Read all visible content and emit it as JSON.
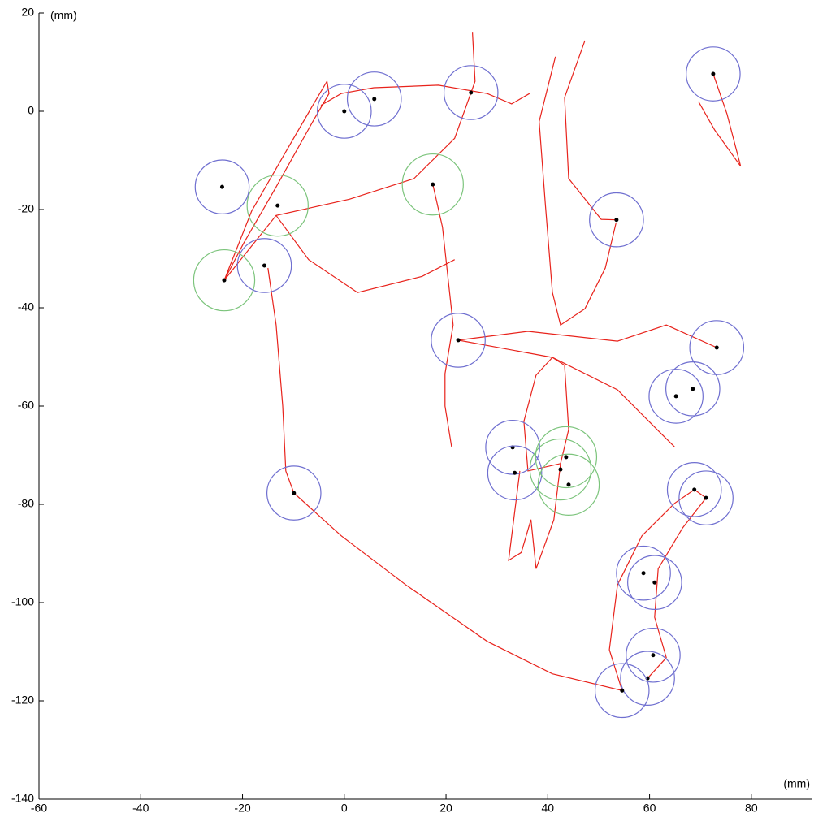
{
  "chart_data": {
    "type": "scatter",
    "xlabel": "(mm)",
    "ylabel": "(mm)",
    "xlim": [
      -60,
      92
    ],
    "ylim": [
      -140,
      20
    ],
    "xticks": [
      -60,
      -40,
      -20,
      0,
      20,
      40,
      60,
      80
    ],
    "yticks": [
      -140,
      -120,
      -100,
      -80,
      -60,
      -40,
      -20,
      0,
      20
    ],
    "point_color": "#000000",
    "series": [
      {
        "color": "#6f6fd0",
        "radius": 5.3,
        "x": [
          0,
          5.9,
          24.9,
          72.5,
          -24,
          53.5,
          -15.7,
          22.4,
          73.2,
          65.2,
          68.5,
          33.1,
          33.5,
          -9.9,
          68.8,
          71.1,
          58.8,
          61,
          60.7,
          59.6,
          54.6
        ],
        "y": [
          0,
          2.5,
          3.8,
          7.6,
          -15.4,
          -22.1,
          -31.4,
          -46.6,
          -48.1,
          -58,
          -56.5,
          -68.4,
          -73.6,
          -77.7,
          -77,
          -78.7,
          -94,
          -95.9,
          -110.7,
          -115.4,
          -117.9
        ]
      },
      {
        "color": "#7cc47c",
        "radius": 6,
        "x": [
          -13.1,
          17.4,
          -23.6,
          43.6,
          42.5,
          44.1
        ],
        "y": [
          -19.2,
          -14.9,
          -34.4,
          -70.4,
          -72.9,
          -76
        ]
      }
    ],
    "lines": [
      {
        "color": "#e8231c",
        "x": [
          -15,
          -13.4,
          -12.1,
          -11.5,
          -9.9,
          -0.6,
          12.1,
          28.1,
          40.9,
          54.6
        ],
        "y": [
          -31.9,
          -43.5,
          -60,
          -73.2,
          -77.7,
          -86.4,
          -96.4,
          -107.9,
          -114.5,
          -117.9
        ]
      },
      {
        "color": "#e8231c",
        "x": [
          54.6,
          52.1,
          53.7,
          58.5,
          64.9,
          68.8,
          71.1,
          66.5,
          61.7,
          61,
          63.3,
          59.6
        ],
        "y": [
          -117.9,
          -109.6,
          -96.4,
          -86.4,
          -79.8,
          -77,
          -78.7,
          -84.8,
          -93.1,
          -103,
          -111.2,
          -115.4
        ]
      },
      {
        "color": "#e8231c",
        "x": [
          -23.6,
          -18.2,
          -11.8,
          -6.2,
          -3.4,
          -3,
          -6.2,
          -13.4,
          -19.8,
          -23.6
        ],
        "y": [
          -34.4,
          -20.3,
          -8.8,
          1.2,
          6.1,
          3.6,
          -2.1,
          -15.4,
          -26.9,
          -34.4
        ]
      },
      {
        "color": "#e8231c",
        "x": [
          -23.6,
          -13.4,
          1,
          13.7,
          21.7,
          25.7,
          25.2
        ],
        "y": [
          -34.4,
          -21.2,
          -17.9,
          -13.7,
          -5.5,
          6.1,
          16
        ]
      },
      {
        "color": "#e8231c",
        "x": [
          -4.6,
          -0.6,
          5.8,
          18.5,
          28.1,
          32.9,
          36.4
        ],
        "y": [
          1.2,
          3.6,
          4.8,
          5.3,
          3.6,
          1.5,
          3.6
        ]
      },
      {
        "color": "#e8231c",
        "x": [
          22.4,
          36.1,
          53.7,
          63.3,
          73.2
        ],
        "y": [
          -46.6,
          -44.8,
          -46.8,
          -43.5,
          -48.1
        ]
      },
      {
        "color": "#e8231c",
        "x": [
          22.4,
          40.9,
          53.7,
          61.7,
          64.9
        ],
        "y": [
          -46.6,
          -50.1,
          -56.7,
          -65,
          -68.3
        ]
      },
      {
        "color": "#e8231c",
        "x": [
          17.4,
          19.3,
          21.4,
          19.8,
          19.8,
          21.1
        ],
        "y": [
          -14.9,
          -23.6,
          -43.5,
          -53.4,
          -60,
          -68.3
        ]
      },
      {
        "color": "#e8231c",
        "x": [
          -13.4,
          -7,
          2.6,
          15.3,
          21.7
        ],
        "y": [
          -21.2,
          -30.2,
          -36.9,
          -33.6,
          -30.2
        ]
      },
      {
        "color": "#e8231c",
        "x": [
          47.3,
          43.3,
          44.1,
          50.5,
          53.5
        ],
        "y": [
          14.4,
          2.8,
          -13.7,
          -22,
          -22.1
        ]
      },
      {
        "color": "#e8231c",
        "x": [
          41.5,
          38.3,
          39.5,
          40.9,
          42.5,
          47.3,
          51.3,
          53.4
        ],
        "y": [
          11.1,
          -2.1,
          -18.7,
          -36.9,
          -43.5,
          -40.2,
          -31.9,
          -22.8
        ]
      },
      {
        "color": "#e8231c",
        "x": [
          72.5,
          75.2,
          77.9,
          72.8,
          69.6
        ],
        "y": [
          7.6,
          -0.5,
          -11.2,
          -3.8,
          2
        ]
      },
      {
        "color": "#e8231c",
        "x": [
          37.7,
          40.9,
          43.3,
          44.1,
          42.5,
          36.1,
          35.3,
          37.7
        ],
        "y": [
          -53.7,
          -50.1,
          -51.7,
          -64.8,
          -71.7,
          -73.2,
          -63.1,
          -53.7
        ]
      },
      {
        "color": "#e8231c",
        "x": [
          34.5,
          32.3,
          34.8,
          36.7,
          37.7,
          41.2,
          42.5
        ],
        "y": [
          -73.2,
          -91.4,
          -89.8,
          -83.1,
          -93.1,
          -83.1,
          -71.7
        ]
      }
    ]
  }
}
